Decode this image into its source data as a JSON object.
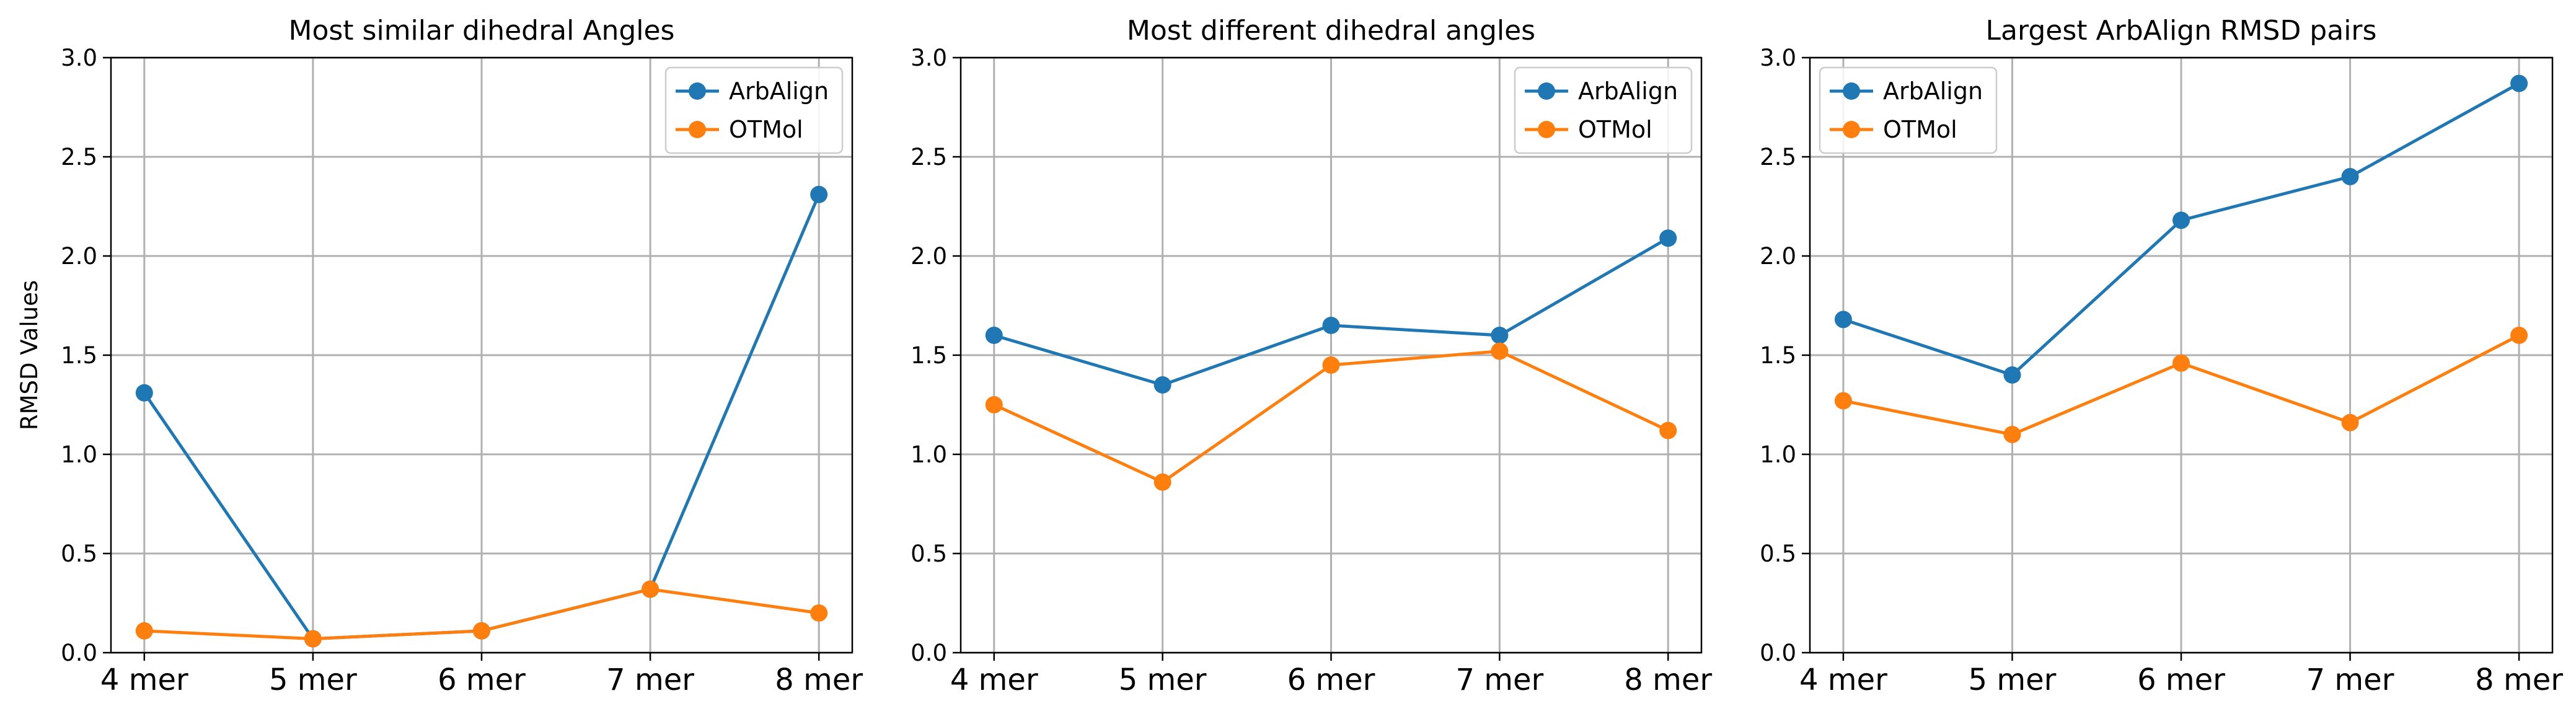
{
  "chart_data": [
    {
      "type": "line",
      "title": "Most similar dihedral Angles",
      "xlabel": "",
      "ylabel": "RMSD Values",
      "categories": [
        "4 mer",
        "5 mer",
        "6 mer",
        "7 mer",
        "8 mer"
      ],
      "ylim": [
        0,
        3.0
      ],
      "yticks": [
        "0.0",
        "0.5",
        "1.0",
        "1.5",
        "2.0",
        "2.5",
        "3.0"
      ],
      "grid": true,
      "legend": "top-right",
      "series": [
        {
          "name": "ArbAlign",
          "color": "#1f77b4",
          "values": [
            1.31,
            0.07,
            0.11,
            0.32,
            2.31
          ]
        },
        {
          "name": "OTMol",
          "color": "#ff7f0e",
          "values": [
            0.11,
            0.07,
            0.11,
            0.32,
            0.2
          ]
        }
      ]
    },
    {
      "type": "line",
      "title": "Most different dihedral angles",
      "xlabel": "",
      "ylabel": "",
      "categories": [
        "4 mer",
        "5 mer",
        "6 mer",
        "7 mer",
        "8 mer"
      ],
      "ylim": [
        0,
        3.0
      ],
      "yticks": [
        "0.0",
        "0.5",
        "1.0",
        "1.5",
        "2.0",
        "2.5",
        "3.0"
      ],
      "grid": true,
      "legend": "top-right",
      "series": [
        {
          "name": "ArbAlign",
          "color": "#1f77b4",
          "values": [
            1.6,
            1.35,
            1.65,
            1.6,
            2.09
          ]
        },
        {
          "name": "OTMol",
          "color": "#ff7f0e",
          "values": [
            1.25,
            0.86,
            1.45,
            1.52,
            1.12
          ]
        }
      ]
    },
    {
      "type": "line",
      "title": "Largest ArbAlign RMSD pairs",
      "xlabel": "",
      "ylabel": "",
      "categories": [
        "4 mer",
        "5 mer",
        "6 mer",
        "7 mer",
        "8 mer"
      ],
      "ylim": [
        0,
        3.0
      ],
      "yticks": [
        "0.0",
        "0.5",
        "1.0",
        "1.5",
        "2.0",
        "2.5",
        "3.0"
      ],
      "grid": true,
      "legend": "top-left",
      "series": [
        {
          "name": "ArbAlign",
          "color": "#1f77b4",
          "values": [
            1.68,
            1.4,
            2.18,
            2.4,
            2.87
          ]
        },
        {
          "name": "OTMol",
          "color": "#ff7f0e",
          "values": [
            1.27,
            1.1,
            1.46,
            1.16,
            1.6
          ]
        }
      ]
    }
  ]
}
